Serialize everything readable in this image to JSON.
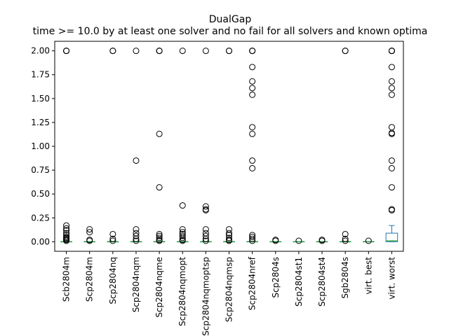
{
  "chart_data": {
    "type": "box",
    "title": "DualGap",
    "subtitle": "time >= 10.0 by at least one solver and no fail for all solvers and known optima",
    "xlabel": "",
    "ylabel": "",
    "ylim": [
      -0.1,
      2.1
    ],
    "yticks": [
      0.0,
      0.25,
      0.5,
      0.75,
      1.0,
      1.25,
      1.5,
      1.75,
      2.0
    ],
    "ytick_labels": [
      "0.00",
      "0.25",
      "0.50",
      "0.75",
      "1.00",
      "1.25",
      "1.50",
      "1.75",
      "2.00"
    ],
    "grid": false,
    "legend": "none",
    "categories": [
      "Scb2804m",
      "Scp2804m",
      "Scp2804nq",
      "Scp2804nqm",
      "Scp2804nqme",
      "Scp2804nqmopt",
      "Scp2804nqmoptsp",
      "Scp2804nqmsp",
      "Scp2804nref",
      "Scp2804s",
      "Scp2804st1",
      "Scp2804st4",
      "Sgb2804s",
      "virt. best",
      "virt. worst"
    ],
    "boxes": [
      {
        "q1": 0.0,
        "median": 0.0,
        "q3": 0.0,
        "whisker_low": 0.0,
        "whisker_high": 0.0,
        "outliers": [
          0.17,
          0.14,
          0.12,
          0.09,
          0.07,
          0.05,
          0.04,
          0.03,
          0.02,
          0.01,
          2.0,
          2.0,
          2.0
        ]
      },
      {
        "q1": 0.0,
        "median": 0.0,
        "q3": 0.0,
        "whisker_low": 0.0,
        "whisker_high": 0.0,
        "outliers": [
          0.13,
          0.1,
          0.02,
          0.01
        ]
      },
      {
        "q1": 0.0,
        "median": 0.0,
        "q3": 0.0,
        "whisker_low": 0.0,
        "whisker_high": 0.0,
        "outliers": [
          0.08,
          0.03,
          0.01,
          2.0,
          2.0
        ]
      },
      {
        "q1": 0.0,
        "median": 0.0,
        "q3": 0.0,
        "whisker_low": 0.0,
        "whisker_high": 0.0,
        "outliers": [
          0.85,
          0.13,
          0.09,
          0.06,
          0.03,
          0.01,
          2.0
        ]
      },
      {
        "q1": 0.0,
        "median": 0.0,
        "q3": 0.0,
        "whisker_low": 0.0,
        "whisker_high": 0.0,
        "outliers": [
          1.13,
          0.57,
          0.08,
          0.06,
          0.04,
          0.02,
          0.01,
          2.0,
          2.0,
          2.0
        ]
      },
      {
        "q1": 0.0,
        "median": 0.0,
        "q3": 0.0,
        "whisker_low": 0.0,
        "whisker_high": 0.0,
        "outliers": [
          0.38,
          0.13,
          0.1,
          0.08,
          0.06,
          0.04,
          0.02,
          0.01,
          2.0
        ]
      },
      {
        "q1": 0.0,
        "median": 0.0,
        "q3": 0.0,
        "whisker_low": 0.0,
        "whisker_high": 0.0,
        "outliers": [
          0.37,
          0.34,
          0.33,
          0.13,
          0.09,
          0.06,
          0.03,
          0.01,
          2.0
        ]
      },
      {
        "q1": 0.0,
        "median": 0.0,
        "q3": 0.0,
        "whisker_low": 0.0,
        "whisker_high": 0.0,
        "outliers": [
          0.13,
          0.09,
          0.07,
          0.04,
          0.02,
          0.01,
          2.0,
          2.0
        ]
      },
      {
        "q1": 0.0,
        "median": 0.0,
        "q3": 0.0,
        "whisker_low": 0.0,
        "whisker_high": 0.0,
        "outliers": [
          1.83,
          1.68,
          1.61,
          1.54,
          1.2,
          1.13,
          0.85,
          0.77,
          0.07,
          0.05,
          0.03,
          0.01,
          2.0,
          2.0,
          2.0
        ]
      },
      {
        "q1": 0.0,
        "median": 0.0,
        "q3": 0.0,
        "whisker_low": 0.0,
        "whisker_high": 0.0,
        "outliers": [
          0.02,
          0.01
        ]
      },
      {
        "q1": 0.0,
        "median": 0.0,
        "q3": 0.0,
        "whisker_low": 0.0,
        "whisker_high": 0.0,
        "outliers": [
          0.01
        ]
      },
      {
        "q1": 0.0,
        "median": 0.0,
        "q3": 0.0,
        "whisker_low": 0.0,
        "whisker_high": 0.0,
        "outliers": [
          0.02,
          0.01
        ]
      },
      {
        "q1": 0.0,
        "median": 0.0,
        "q3": 0.0,
        "whisker_low": 0.0,
        "whisker_high": 0.0,
        "outliers": [
          0.08,
          0.03,
          0.01,
          2.0,
          2.0
        ]
      },
      {
        "q1": 0.0,
        "median": 0.0,
        "q3": 0.0,
        "whisker_low": 0.0,
        "whisker_high": 0.0,
        "outliers": [
          0.01
        ]
      },
      {
        "q1": 0.0,
        "median": 0.01,
        "q3": 0.09,
        "whisker_low": 0.0,
        "whisker_high": 0.17,
        "outliers": [
          0.33,
          0.34,
          0.57,
          0.77,
          0.85,
          1.13,
          1.14,
          1.2,
          1.54,
          1.61,
          1.68,
          1.83,
          2.0,
          2.0,
          2.0,
          2.0
        ]
      }
    ]
  },
  "colors": {
    "box": "#1f77b4",
    "median": "#2ca02c",
    "outlier": "#000000",
    "axes": "#000000",
    "background": "#ffffff"
  }
}
